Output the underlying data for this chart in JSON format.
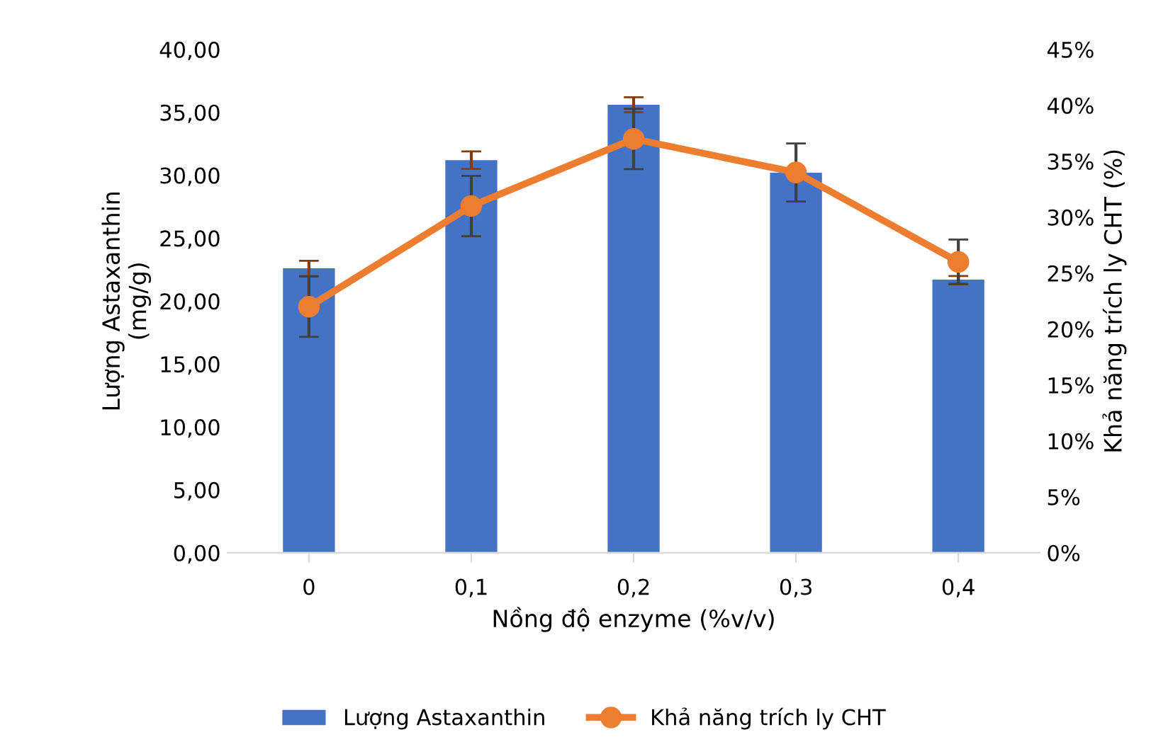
{
  "chart_data": {
    "type": "bar",
    "xlabel": "Nồng độ enzyme (%v/v)",
    "ylabel": "Lượng Astaxanthin\n(mg/g)",
    "y2label": "Khả năng trích ly CHT (%)",
    "categories": [
      "0",
      "0,1",
      "0,2",
      "0,3",
      "0,4"
    ],
    "series": [
      {
        "name": "Lượng Astaxanthin",
        "color": "#4472c4",
        "values": [
          22.6,
          31.2,
          35.6,
          30.2,
          21.7
        ],
        "errors": [
          0.6,
          0.7,
          0.6,
          null,
          0.3
        ]
      },
      {
        "name": "Khả năng trích ly CHT",
        "type": "line",
        "axis": "y2",
        "color": "#ed7d31",
        "marker": "circle",
        "values": [
          22,
          31,
          37,
          34,
          26
        ],
        "errors": [
          2.7,
          2.7,
          2.7,
          2.6,
          2.0
        ]
      }
    ],
    "ylim": [
      0,
      40
    ],
    "yticks": [
      {
        "value": 0,
        "label": "0,00"
      },
      {
        "value": 5,
        "label": "5,00"
      },
      {
        "value": 10,
        "label": "10,00"
      },
      {
        "value": 15,
        "label": "15,00"
      },
      {
        "value": 20,
        "label": "20,00"
      },
      {
        "value": 25,
        "label": "25,00"
      },
      {
        "value": 30,
        "label": "30,00"
      },
      {
        "value": 35,
        "label": "35,00"
      },
      {
        "value": 40,
        "label": "40,00"
      }
    ],
    "y2lim": [
      0,
      45
    ],
    "y2ticks": [
      {
        "value": 0,
        "label": "0%"
      },
      {
        "value": 5,
        "label": "5%"
      },
      {
        "value": 10,
        "label": "10%"
      },
      {
        "value": 15,
        "label": "15%"
      },
      {
        "value": 20,
        "label": "20%"
      },
      {
        "value": 25,
        "label": "25%"
      },
      {
        "value": 30,
        "label": "30%"
      },
      {
        "value": 35,
        "label": "35%"
      },
      {
        "value": 40,
        "label": "40%"
      },
      {
        "value": 45,
        "label": "45%"
      }
    ],
    "legend": "bottom",
    "grid": false
  }
}
